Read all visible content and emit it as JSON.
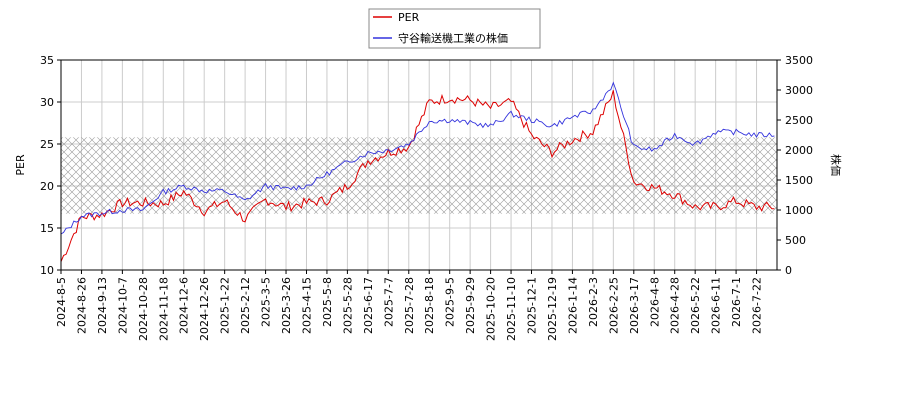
{
  "chart_data": {
    "type": "line",
    "legend": {
      "placement": "top-center",
      "entries": [
        "PER",
        "守谷輸送機工業の株価"
      ]
    },
    "ylabel_left": "PER",
    "ylabel_right": "株価",
    "ylim_left": [
      10,
      35
    ],
    "ylim_right": [
      0,
      3500
    ],
    "yticks_left": [
      10,
      15,
      20,
      25,
      30,
      35
    ],
    "yticks_right": [
      0,
      500,
      1000,
      1500,
      2000,
      2500,
      3000,
      3500
    ],
    "grid": true,
    "shaded_band_left": [
      16.7,
      25.8
    ],
    "x_tick_labels": [
      "2024-8-5",
      "2024-8-26",
      "2024-9-13",
      "2024-10-7",
      "2024-10-28",
      "2024-11-18",
      "2024-12-6",
      "2024-12-26",
      "2025-1-22",
      "2025-2-12",
      "2025-3-5",
      "2025-3-26",
      "2025-4-15",
      "2025-5-8",
      "2025-5-28",
      "2025-6-17",
      "2025-7-7",
      "2025-7-28",
      "2025-8-18",
      "2025-9-5",
      "2025-9-29",
      "2025-10-20",
      "2025-11-10",
      "2025-12-1",
      "2025-12-19",
      "2026-1-14",
      "2026-2-3",
      "2026-2-25",
      "2026-3-17",
      "2026-4-8",
      "2026-4-28",
      "2026-5-22",
      "2026-6-11",
      "2026-7-1",
      "2026-7-22"
    ],
    "series": [
      {
        "name": "PER",
        "color": "#dd0000",
        "axis": "left",
        "x": [
          "2024-8-5",
          "2024-8-26",
          "2024-9-13",
          "2024-10-7",
          "2024-10-28",
          "2024-11-18",
          "2024-12-6",
          "2024-12-26",
          "2025-1-22",
          "2025-2-12",
          "2025-3-5",
          "2025-3-26",
          "2025-4-15",
          "2025-5-8",
          "2025-5-28",
          "2025-6-17",
          "2025-7-7",
          "2025-7-28",
          "2025-8-18",
          "2025-9-5",
          "2025-9-29",
          "2025-10-20",
          "2025-11-10",
          "2025-12-1",
          "2025-12-19",
          "2026-1-14",
          "2026-2-3",
          "2026-2-25",
          "2026-3-17",
          "2026-4-8",
          "2026-4-28",
          "2026-5-22",
          "2026-6-11",
          "2026-7-1",
          "2026-7-22"
        ],
        "values": [
          11.0,
          16.3,
          16.6,
          18.0,
          18.0,
          17.9,
          19.3,
          17.0,
          18.2,
          16.0,
          18.4,
          17.5,
          18.0,
          18.3,
          20.0,
          23.0,
          24.0,
          24.7,
          30.0,
          30.5,
          30.2,
          29.3,
          30.0,
          26.0,
          24.0,
          25.5,
          26.5,
          31.0,
          20.5,
          19.8,
          19.0,
          17.5,
          17.5,
          18.2,
          17.5
        ]
      },
      {
        "name": "守谷輸送機工業の株価",
        "color": "#3333dd",
        "axis": "right",
        "x": [
          "2024-8-5",
          "2024-8-26",
          "2024-9-13",
          "2024-10-7",
          "2024-10-28",
          "2024-11-18",
          "2024-12-6",
          "2024-12-26",
          "2025-1-22",
          "2025-2-12",
          "2025-3-5",
          "2025-3-26",
          "2025-4-15",
          "2025-5-8",
          "2025-5-28",
          "2025-6-17",
          "2025-7-7",
          "2025-7-28",
          "2025-8-18",
          "2025-9-5",
          "2025-9-29",
          "2025-10-20",
          "2025-11-10",
          "2025-12-1",
          "2025-12-19",
          "2026-1-14",
          "2026-2-3",
          "2026-2-25",
          "2026-3-17",
          "2026-4-8",
          "2026-4-28",
          "2026-5-22",
          "2026-6-11",
          "2026-7-1",
          "2026-7-22"
        ],
        "values": [
          580,
          900,
          950,
          1000,
          1000,
          1300,
          1400,
          1320,
          1320,
          1150,
          1400,
          1350,
          1400,
          1600,
          1800,
          1950,
          2000,
          2100,
          2480,
          2500,
          2450,
          2400,
          2600,
          2500,
          2400,
          2550,
          2650,
          3100,
          2050,
          2000,
          2250,
          2100,
          2300,
          2300,
          2250
        ]
      }
    ]
  }
}
